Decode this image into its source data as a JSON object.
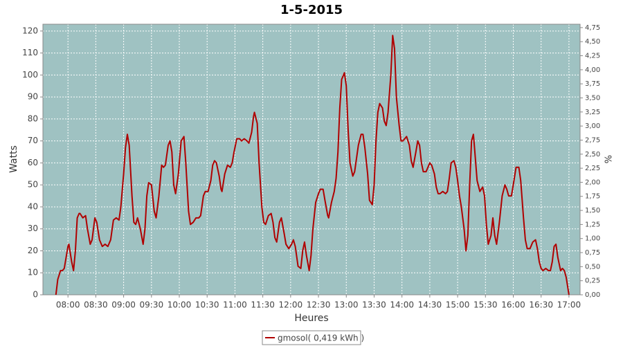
{
  "chart_data": {
    "type": "line",
    "title": "1-5-2015",
    "x_label": "Heures",
    "y_label": "Watts",
    "y2_label": "%",
    "legend": "bottom",
    "grid": true,
    "background": "#9fc2c2",
    "xlim": [
      "07:33",
      "17:12"
    ],
    "xticks": [
      "08:00",
      "08:30",
      "09:00",
      "09:30",
      "10:00",
      "10:30",
      "11:00",
      "11:30",
      "12:00",
      "12:30",
      "13:00",
      "13:30",
      "14:00",
      "14:30",
      "15:00",
      "15:30",
      "16:00",
      "16:30",
      "17:00"
    ],
    "ylim": [
      0,
      123.1
    ],
    "yticks": [
      0,
      10,
      20,
      30,
      40,
      50,
      60,
      70,
      80,
      90,
      100,
      110,
      120
    ],
    "y2lim": [
      0,
      4.81
    ],
    "y2ticks": [
      {
        "value": 0,
        "label": "0,00"
      },
      {
        "value": 0.25,
        "label": "0,25"
      },
      {
        "value": 0.5,
        "label": "0,50"
      },
      {
        "value": 0.75,
        "label": "0,75"
      },
      {
        "value": 1,
        "label": "1,00"
      },
      {
        "value": 1.25,
        "label": "1,25"
      },
      {
        "value": 1.5,
        "label": "1,50"
      },
      {
        "value": 1.75,
        "label": "1,75"
      },
      {
        "value": 2,
        "label": "2,00"
      },
      {
        "value": 2.25,
        "label": "2,25"
      },
      {
        "value": 2.5,
        "label": "2,50"
      },
      {
        "value": 2.75,
        "label": "2,75"
      },
      {
        "value": 3,
        "label": "3,00"
      },
      {
        "value": 3.25,
        "label": "3,25"
      },
      {
        "value": 3.5,
        "label": "3,50"
      },
      {
        "value": 3.75,
        "label": "3,75"
      },
      {
        "value": 4,
        "label": "4,00"
      },
      {
        "value": 4.25,
        "label": "4,25"
      },
      {
        "value": 4.5,
        "label": "4,50"
      },
      {
        "value": 4.75,
        "label": "4,75"
      }
    ],
    "x": [
      "07:47",
      "07:49",
      "07:52",
      "07:54",
      "07:56",
      "08:00",
      "08:01",
      "08:04",
      "08:06",
      "08:08",
      "08:10",
      "08:12",
      "08:13",
      "08:16",
      "08:19",
      "08:21",
      "08:24",
      "08:26",
      "08:29",
      "08:31",
      "08:34",
      "08:37",
      "08:40",
      "08:43",
      "08:46",
      "08:49",
      "08:52",
      "08:55",
      "08:57",
      "09:00",
      "09:02",
      "09:04",
      "09:06",
      "09:09",
      "09:11",
      "09:13",
      "09:15",
      "09:18",
      "09:21",
      "09:23",
      "09:25",
      "09:27",
      "09:30",
      "09:33",
      "09:35",
      "09:38",
      "09:41",
      "09:43",
      "09:45",
      "09:48",
      "09:50",
      "09:52",
      "09:54",
      "09:56",
      "09:59",
      "10:02",
      "10:05",
      "10:07",
      "10:10",
      "10:12",
      "10:15",
      "10:18",
      "10:21",
      "10:23",
      "10:26",
      "10:28",
      "10:31",
      "10:34",
      "10:36",
      "10:38",
      "10:40",
      "10:43",
      "10:45",
      "10:46",
      "10:49",
      "10:52",
      "10:55",
      "10:57",
      "10:59",
      "11:02",
      "11:05",
      "11:07",
      "11:10",
      "11:13",
      "11:15",
      "11:18",
      "11:20",
      "11:21",
      "11:24",
      "11:26",
      "11:29",
      "11:31",
      "11:33",
      "11:36",
      "11:39",
      "11:41",
      "11:43",
      "11:45",
      "11:48",
      "11:50",
      "11:53",
      "11:55",
      "11:58",
      "12:01",
      "12:03",
      "12:05",
      "12:08",
      "12:11",
      "12:13",
      "12:15",
      "12:17",
      "12:20",
      "12:22",
      "12:24",
      "12:27",
      "12:30",
      "12:32",
      "12:35",
      "12:37",
      "12:40",
      "12:41",
      "12:44",
      "12:47",
      "12:49",
      "12:51",
      "12:53",
      "12:55",
      "12:58",
      "13:00",
      "13:02",
      "13:04",
      "13:07",
      "13:09",
      "13:11",
      "13:13",
      "13:16",
      "13:18",
      "13:20",
      "13:23",
      "13:25",
      "13:28",
      "13:30",
      "13:32",
      "13:34",
      "13:36",
      "13:39",
      "13:41",
      "13:43",
      "13:45",
      "13:48",
      "13:50",
      "13:52",
      "13:54",
      "13:57",
      "13:59",
      "14:01",
      "14:03",
      "14:05",
      "14:08",
      "14:10",
      "14:12",
      "14:15",
      "14:17",
      "14:19",
      "14:21",
      "14:23",
      "14:26",
      "14:28",
      "14:30",
      "14:32",
      "14:35",
      "14:37",
      "14:39",
      "14:41",
      "14:44",
      "14:47",
      "14:49",
      "14:51",
      "14:53",
      "14:56",
      "14:58",
      "15:00",
      "15:02",
      "15:04",
      "15:07",
      "15:09",
      "15:11",
      "15:13",
      "15:15",
      "15:17",
      "15:18",
      "15:21",
      "15:24",
      "15:27",
      "15:29",
      "15:31",
      "15:33",
      "15:36",
      "15:38",
      "15:40",
      "15:42",
      "15:45",
      "15:48",
      "15:51",
      "15:53",
      "15:55",
      "15:58",
      "16:00",
      "16:03",
      "16:06",
      "16:08",
      "16:11",
      "16:13",
      "16:15",
      "16:18",
      "16:21",
      "16:24",
      "16:26",
      "16:28",
      "16:30",
      "16:32",
      "16:35",
      "16:38",
      "16:40",
      "16:42",
      "16:44",
      "16:46",
      "16:48",
      "16:51",
      "16:53",
      "16:55",
      "16:57",
      "17:00"
    ],
    "series": [
      {
        "name": "gmosol( 0,419 kWh )",
        "color": "#b00000",
        "values": [
          0,
          7,
          11,
          11,
          12,
          22,
          23,
          15,
          11,
          20,
          35,
          37,
          37,
          35,
          36,
          30,
          23,
          25,
          35,
          33,
          25,
          22,
          23,
          22,
          25,
          34,
          35,
          34,
          40,
          55,
          67,
          73,
          68,
          45,
          33,
          32,
          35,
          30,
          23,
          30,
          45,
          51,
          50,
          38,
          35,
          45,
          59,
          58,
          59,
          68,
          70,
          65,
          50,
          46,
          55,
          70,
          72,
          60,
          38,
          32,
          33,
          35,
          35,
          36,
          45,
          47,
          47,
          52,
          59,
          61,
          60,
          54,
          48,
          47,
          55,
          59,
          58,
          60,
          65,
          71,
          71,
          70,
          71,
          70,
          69,
          74,
          81,
          83,
          78,
          60,
          40,
          33,
          32,
          36,
          37,
          33,
          26,
          24,
          33,
          35,
          28,
          23,
          21,
          23,
          25,
          22,
          13,
          12,
          20,
          24,
          18,
          11,
          18,
          30,
          42,
          46,
          48,
          48,
          43,
          36,
          35,
          42,
          47,
          53,
          65,
          85,
          98,
          101,
          95,
          75,
          60,
          54,
          56,
          62,
          68,
          73,
          73,
          67,
          55,
          43,
          41,
          50,
          70,
          83,
          87,
          85,
          79,
          77,
          83,
          100,
          118,
          112,
          90,
          77,
          70,
          70,
          71,
          72,
          68,
          61,
          58,
          65,
          70,
          68,
          60,
          56,
          56,
          58,
          60,
          59,
          55,
          49,
          46,
          46,
          47,
          46,
          47,
          53,
          60,
          61,
          58,
          52,
          45,
          40,
          30,
          20,
          27,
          50,
          70,
          73,
          68,
          52,
          47,
          49,
          45,
          32,
          23,
          27,
          35,
          27,
          23,
          33,
          45,
          50,
          48,
          45,
          45,
          50,
          58,
          58,
          52,
          35,
          25,
          21,
          21,
          24,
          25,
          21,
          15,
          12,
          11,
          12,
          11,
          11,
          15,
          22,
          23,
          17,
          11,
          12,
          11,
          8,
          0
        ]
      }
    ]
  }
}
